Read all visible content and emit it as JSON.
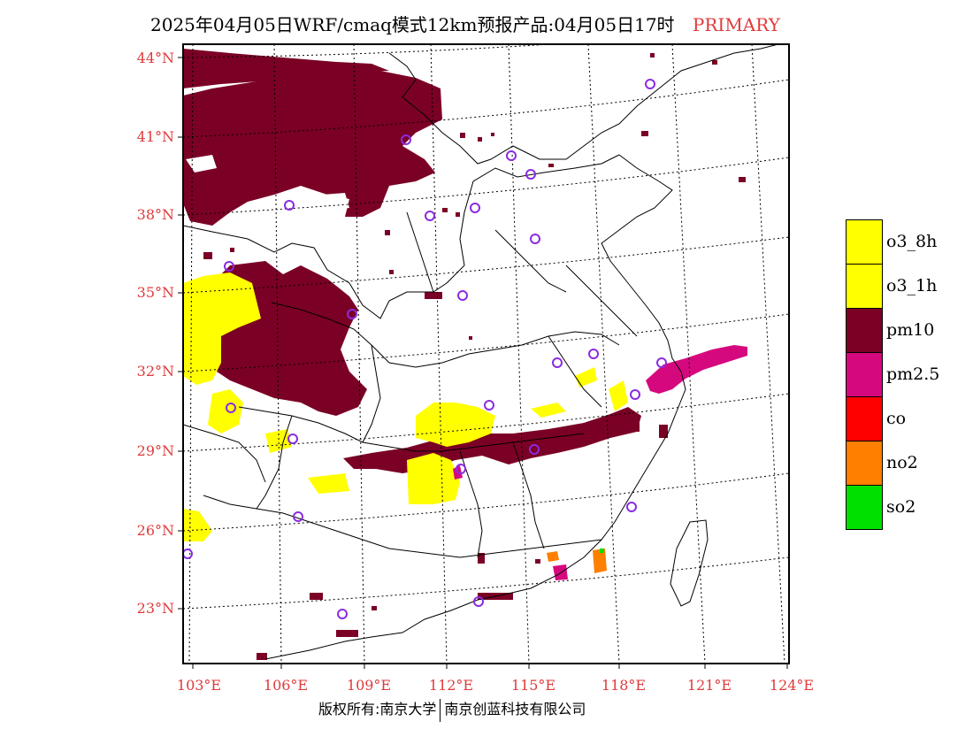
{
  "title": {
    "text": "2025年04月05日WRF/cmaq模式12km预报产品:04月05日17时",
    "tag": "PRIMARY",
    "tag_color": "#e03a3a"
  },
  "axes": {
    "lat_labels": [
      "44°N",
      "41°N",
      "38°N",
      "35°N",
      "32°N",
      "29°N",
      "26°N",
      "23°N"
    ],
    "lon_labels": [
      "103°E",
      "106°E",
      "109°E",
      "112°E",
      "115°E",
      "118°E",
      "121°E",
      "124°E"
    ]
  },
  "legend": [
    {
      "label": "o3_8h",
      "color": "#ffff00"
    },
    {
      "label": "o3_1h",
      "color": "#ffff00"
    },
    {
      "label": "pm10",
      "color": "#7b0025"
    },
    {
      "label": "pm2.5",
      "color": "#d6087e"
    },
    {
      "label": "co",
      "color": "#ff0000"
    },
    {
      "label": "no2",
      "color": "#ff7f00"
    },
    {
      "label": "so2",
      "color": "#00e000"
    }
  ],
  "footer": {
    "left": "版权所有:南京大学",
    "right": "南京创蓝科技有限公司"
  },
  "map": {
    "pollutant_colors": {
      "o3": "#ffff00",
      "pm10": "#7b0025",
      "pm25": "#d6087e",
      "no2": "#ff7f00",
      "so2": "#00e000"
    },
    "station_marker_color": "#8a2be2"
  }
}
